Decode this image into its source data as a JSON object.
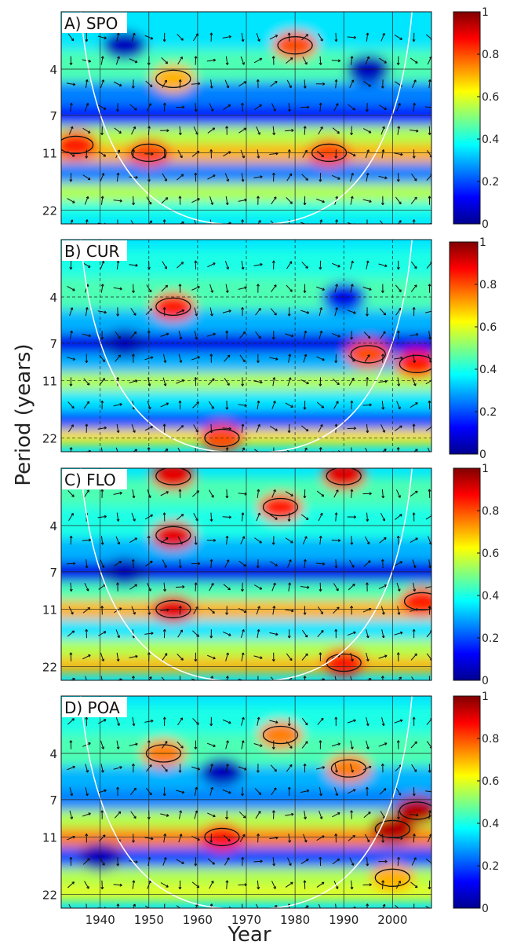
{
  "figure": {
    "ylabel": "Period (years)",
    "xlabel": "Year"
  },
  "colormap": [
    "#00008f",
    "#0000ff",
    "#0080ff",
    "#00ffff",
    "#80ff80",
    "#ffff00",
    "#ff8000",
    "#ff0000",
    "#800000"
  ],
  "chart_data": [
    {
      "type": "heatmap",
      "title": "A) SPO",
      "x_range": [
        1932,
        2008
      ],
      "y_ticks": [
        "4",
        "7",
        "11",
        "22"
      ],
      "colorbar": {
        "range": [
          0,
          1
        ],
        "ticks": [
          "0",
          "0.2",
          "0.4",
          "0.6",
          "0.8",
          "1"
        ]
      },
      "x_ticks": [],
      "bands": [
        {
          "period": 2.5,
          "value": 0.35
        },
        {
          "period": 4,
          "value": 0.45
        },
        {
          "period": 5.5,
          "value": 0.25
        },
        {
          "period": 7,
          "value": 0.15
        },
        {
          "period": 9,
          "value": 0.55
        },
        {
          "period": 11,
          "value": 0.7
        },
        {
          "period": 14,
          "value": 0.25
        },
        {
          "period": 18,
          "value": 0.55
        },
        {
          "period": 22,
          "value": 0.4
        }
      ],
      "blobs": [
        {
          "year": 1935,
          "period": 10,
          "value": 0.85
        },
        {
          "year": 1950,
          "period": 11,
          "value": 0.8
        },
        {
          "year": 1980,
          "period": 3,
          "value": 0.8
        },
        {
          "year": 1987,
          "period": 11,
          "value": 0.8
        },
        {
          "year": 1955,
          "period": 4.5,
          "value": 0.7
        },
        {
          "year": 1945,
          "period": 3,
          "value": 0.05
        },
        {
          "year": 1995,
          "period": 4,
          "value": 0.05
        }
      ]
    },
    {
      "type": "heatmap",
      "title": "B) CUR",
      "x_range": [
        1932,
        2008
      ],
      "y_ticks": [
        "4",
        "7",
        "11",
        "22"
      ],
      "colorbar": {
        "range": [
          0,
          1
        ],
        "ticks": [
          "0",
          "0.2",
          "0.4",
          "0.6",
          "0.8",
          "1"
        ]
      },
      "x_ticks": [],
      "bands": [
        {
          "period": 2.5,
          "value": 0.4
        },
        {
          "period": 4,
          "value": 0.45
        },
        {
          "period": 5.5,
          "value": 0.3
        },
        {
          "period": 7,
          "value": 0.1
        },
        {
          "period": 9,
          "value": 0.3
        },
        {
          "period": 11,
          "value": 0.55
        },
        {
          "period": 14,
          "value": 0.35
        },
        {
          "period": 18,
          "value": 0.2
        },
        {
          "period": 22,
          "value": 0.65
        }
      ],
      "blobs": [
        {
          "year": 1955,
          "period": 4.5,
          "value": 0.85
        },
        {
          "year": 1995,
          "period": 8,
          "value": 0.8
        },
        {
          "year": 2005,
          "period": 9,
          "value": 0.85
        },
        {
          "year": 1965,
          "period": 22,
          "value": 0.8
        },
        {
          "year": 1945,
          "period": 7,
          "value": 0.05
        },
        {
          "year": 1990,
          "period": 4,
          "value": 0.1
        }
      ]
    },
    {
      "type": "heatmap",
      "title": "C) FLO",
      "x_range": [
        1932,
        2008
      ],
      "y_ticks": [
        "4",
        "7",
        "11",
        "22"
      ],
      "colorbar": {
        "range": [
          0,
          1
        ],
        "ticks": [
          "0",
          "0.2",
          "0.4",
          "0.6",
          "0.8",
          "1"
        ]
      },
      "x_ticks": [],
      "bands": [
        {
          "period": 2.5,
          "value": 0.45
        },
        {
          "period": 4,
          "value": 0.4
        },
        {
          "period": 5.5,
          "value": 0.3
        },
        {
          "period": 7,
          "value": 0.1
        },
        {
          "period": 9,
          "value": 0.45
        },
        {
          "period": 11,
          "value": 0.7
        },
        {
          "period": 14,
          "value": 0.35
        },
        {
          "period": 18,
          "value": 0.55
        },
        {
          "period": 22,
          "value": 0.7
        }
      ],
      "blobs": [
        {
          "year": 1955,
          "period": 4.5,
          "value": 0.9
        },
        {
          "year": 1955,
          "period": 2.2,
          "value": 0.9
        },
        {
          "year": 1990,
          "period": 2.2,
          "value": 0.9
        },
        {
          "year": 1977,
          "period": 3.2,
          "value": 0.85
        },
        {
          "year": 1955,
          "period": 11,
          "value": 0.9
        },
        {
          "year": 1990,
          "period": 21,
          "value": 0.85
        },
        {
          "year": 2006,
          "period": 10,
          "value": 0.85
        },
        {
          "year": 1945,
          "period": 7,
          "value": 0.05
        }
      ]
    },
    {
      "type": "heatmap",
      "title": "D) POA",
      "x_range": [
        1932,
        2008
      ],
      "y_ticks": [
        "4",
        "7",
        "11",
        "22"
      ],
      "colorbar": {
        "range": [
          0,
          1
        ],
        "ticks": [
          "0",
          "0.2",
          "0.4",
          "0.6",
          "0.8",
          "1"
        ]
      },
      "x_ticks": [
        "1940",
        "1950",
        "1960",
        "1970",
        "1980",
        "1990",
        "2000"
      ],
      "bands": [
        {
          "period": 2.5,
          "value": 0.4
        },
        {
          "period": 4,
          "value": 0.45
        },
        {
          "period": 5.5,
          "value": 0.3
        },
        {
          "period": 7,
          "value": 0.25
        },
        {
          "period": 9,
          "value": 0.55
        },
        {
          "period": 11,
          "value": 0.75
        },
        {
          "period": 14,
          "value": 0.2
        },
        {
          "period": 18,
          "value": 0.55
        },
        {
          "period": 22,
          "value": 0.6
        }
      ],
      "blobs": [
        {
          "year": 1953,
          "period": 4,
          "value": 0.75
        },
        {
          "year": 1977,
          "period": 3.2,
          "value": 0.75
        },
        {
          "year": 1991,
          "period": 4.8,
          "value": 0.75
        },
        {
          "year": 1965,
          "period": 11,
          "value": 0.85
        },
        {
          "year": 2000,
          "period": 10,
          "value": 0.95
        },
        {
          "year": 2005,
          "period": 8,
          "value": 0.95
        },
        {
          "year": 2000,
          "period": 18,
          "value": 0.7
        },
        {
          "year": 1965,
          "period": 5,
          "value": 0.05
        },
        {
          "year": 1940,
          "period": 14,
          "value": 0.05
        }
      ]
    }
  ]
}
